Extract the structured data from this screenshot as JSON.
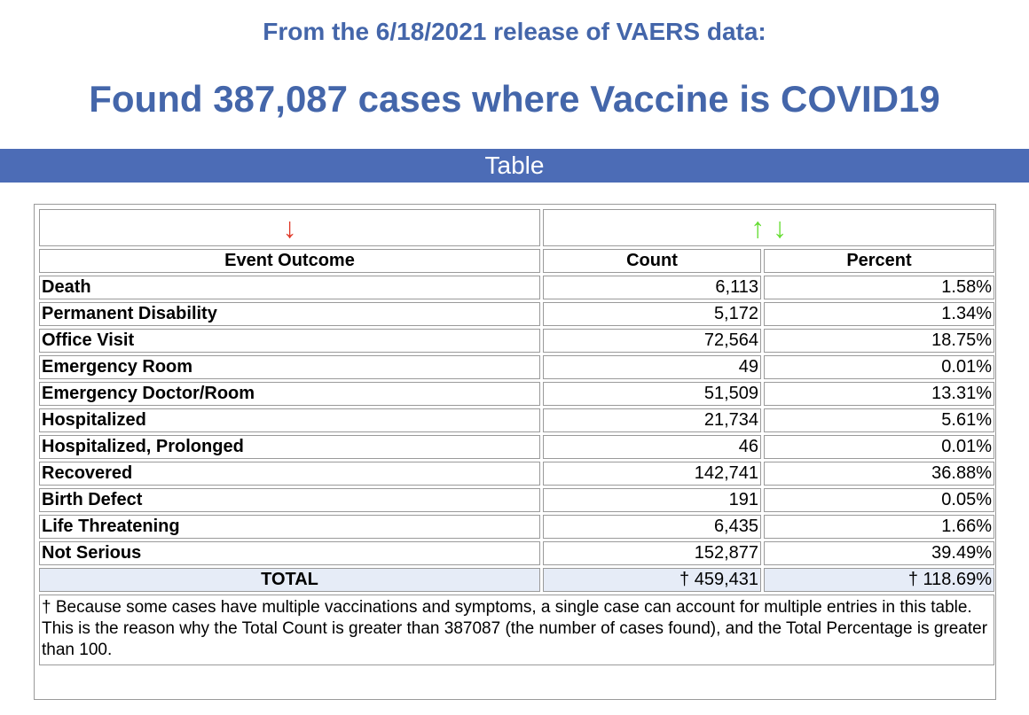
{
  "header": {
    "subtitle": "From the 6/18/2021 release of VAERS data:",
    "title": "Found 387,087 cases where Vaccine is COVID19"
  },
  "section": {
    "label": "Table"
  },
  "table": {
    "sort_indicators": {
      "event_outcome": "↓",
      "count_up": "↑",
      "count_down": "↓"
    },
    "colors": {
      "sort_active": "#e03a2a",
      "sort_available": "#66dd33",
      "header_bar": "#4c6cb6",
      "title_text": "#4466aa",
      "total_row_bg": "#e6ecf7"
    },
    "columns": [
      "Event Outcome",
      "Count",
      "Percent"
    ],
    "rows": [
      {
        "outcome": "Death",
        "count": "6,113",
        "percent": "1.58%"
      },
      {
        "outcome": "Permanent Disability",
        "count": "5,172",
        "percent": "1.34%"
      },
      {
        "outcome": "Office Visit",
        "count": "72,564",
        "percent": "18.75%"
      },
      {
        "outcome": "Emergency Room",
        "count": "49",
        "percent": "0.01%"
      },
      {
        "outcome": "Emergency Doctor/Room",
        "count": "51,509",
        "percent": "13.31%"
      },
      {
        "outcome": "Hospitalized",
        "count": "21,734",
        "percent": "5.61%"
      },
      {
        "outcome": "Hospitalized, Prolonged",
        "count": "46",
        "percent": "0.01%"
      },
      {
        "outcome": "Recovered",
        "count": "142,741",
        "percent": "36.88%"
      },
      {
        "outcome": "Birth Defect",
        "count": "191",
        "percent": "0.05%"
      },
      {
        "outcome": "Life Threatening",
        "count": "6,435",
        "percent": "1.66%"
      },
      {
        "outcome": "Not Serious",
        "count": "152,877",
        "percent": "39.49%"
      }
    ],
    "total": {
      "label": "TOTAL",
      "count": "† 459,431",
      "percent": "† 118.69%"
    },
    "footnote": "† Because some cases have multiple vaccinations and symptoms, a single case can account for multiple entries in this table. This is the reason why the Total Count is greater than 387087 (the number of cases found), and the Total Percentage is greater than 100."
  }
}
